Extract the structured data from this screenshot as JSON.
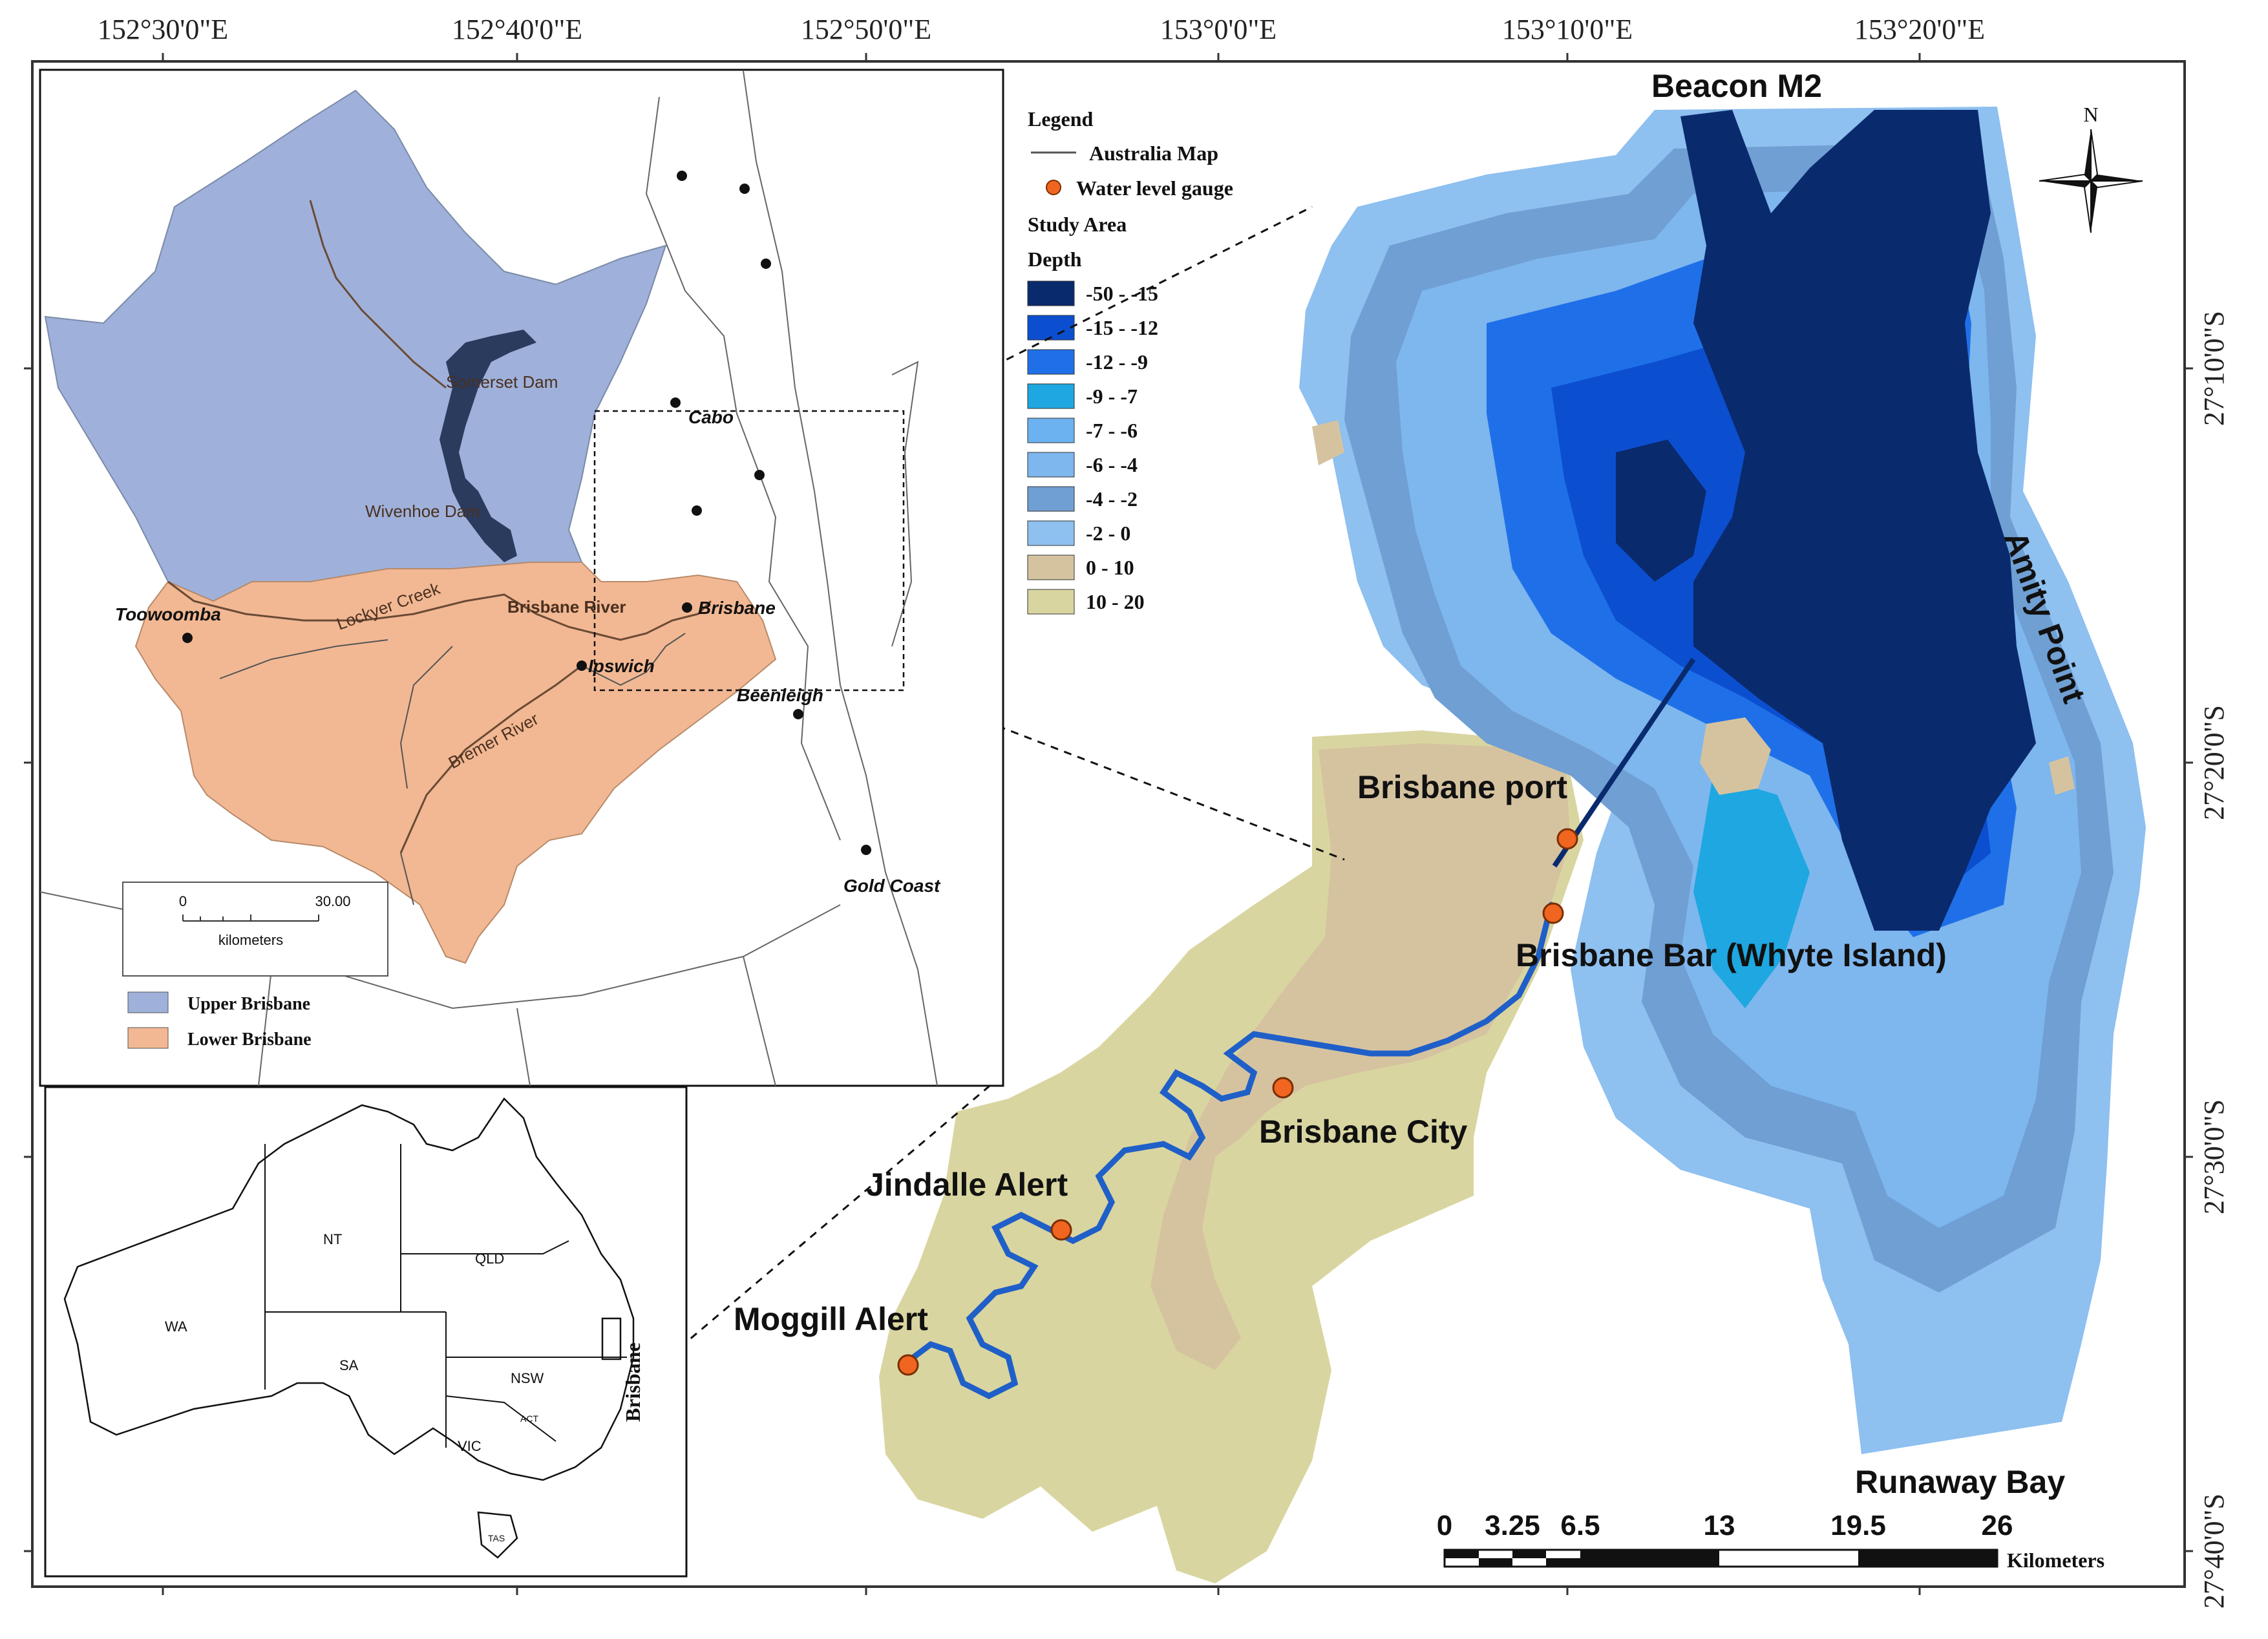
{
  "coords": {
    "top": [
      "152°30'0\"E",
      "152°40'0\"E",
      "152°50'0\"E",
      "153°0'0\"E",
      "153°10'0\"E",
      "153°20'0\"E"
    ],
    "right": [
      "27°10'0\"S",
      "27°20'0\"S",
      "27°30'0\"S",
      "27°40'0\"S"
    ]
  },
  "legend": {
    "title": "Legend",
    "australia_map": "Australia Map",
    "gauge": "Water level gauge",
    "study_area": "Study Area",
    "depth_title": "Depth",
    "classes": [
      {
        "label": "-50 - -15",
        "color": "#0a2a6e"
      },
      {
        "label": "-15 - -12",
        "color": "#0b4fd0"
      },
      {
        "label": "-12 - -9",
        "color": "#1f70e8"
      },
      {
        "label": "-9 - -7",
        "color": "#1ea7e0"
      },
      {
        "label": "-7 - -6",
        "color": "#6cb1f0"
      },
      {
        "label": "-6 - -4",
        "color": "#7eb6ee"
      },
      {
        "label": "-4 - -2",
        "color": "#6f9fd3"
      },
      {
        "label": "-2 - 0",
        "color": "#8ec0f0"
      },
      {
        "label": "0 - 10",
        "color": "#d5c3a0"
      },
      {
        "label": "10 - 20",
        "color": "#d9d5a0"
      }
    ]
  },
  "labels": {
    "beacon": "Beacon M2",
    "amity": "Amity Point",
    "port": "Brisbane port",
    "bar": "Brisbane Bar (Whyte Island)",
    "city": "Brisbane City",
    "jindalle": "Jindalle Alert",
    "moggill": "Moggill Alert",
    "runaway": "Runaway Bay",
    "north": "N"
  },
  "scalebar": {
    "ticks": [
      "0",
      "3.25",
      "6.5",
      "13",
      "19.5",
      "26"
    ],
    "unit": "Kilometers"
  },
  "inset": {
    "places": {
      "somerset": "Somerset Dam",
      "wivenhoe": "Wivenhoe Dam",
      "lockyer": "Lockyer Creek",
      "brisbane_river": "Brisbane River",
      "brisbane": "Brisbane",
      "ipswich": "Ipswich",
      "bremer": "Bremer River",
      "toowoomba": "Toowoomba",
      "cabo": "Cabo",
      "beenleigh": "Beenleigh",
      "goldcoast": "Gold Coast"
    },
    "scale": {
      "left": "0",
      "right": "30.00",
      "unit": "kilometers"
    },
    "legend": [
      {
        "label": "Upper Brisbane",
        "color": "#9fb1da"
      },
      {
        "label": "Lower Brisbane",
        "color": "#f2b893"
      }
    ]
  },
  "australia": {
    "states": [
      "WA",
      "NT",
      "QLD",
      "SA",
      "NSW",
      "VIC",
      "ACT",
      "TAS"
    ],
    "region": "Brisbane"
  }
}
